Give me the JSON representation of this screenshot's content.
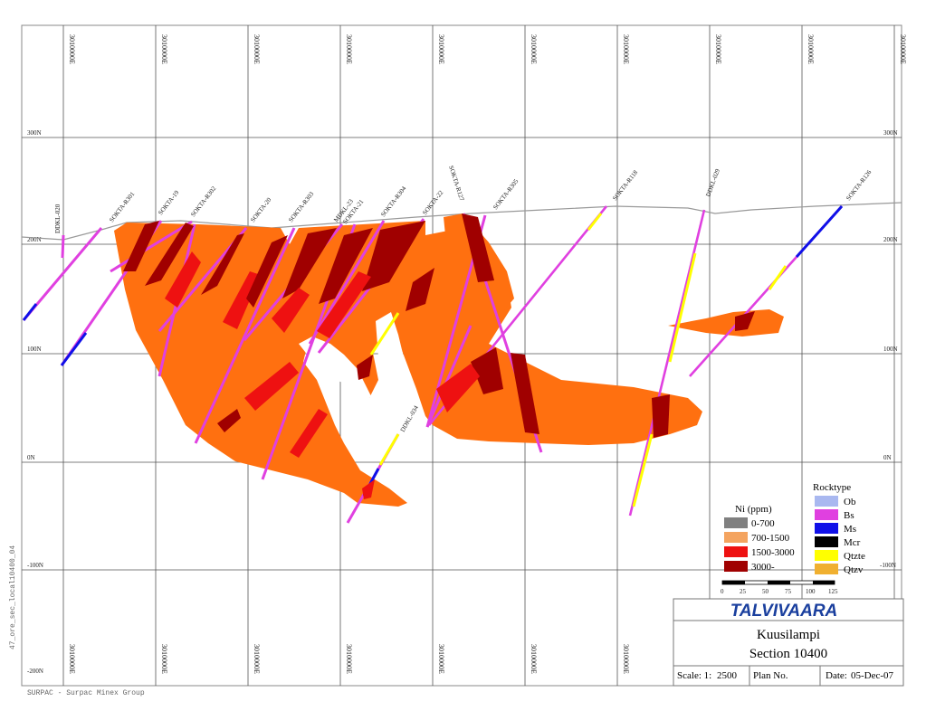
{
  "side_label": "47_ore_sec_local10400_04",
  "footer_label": "SURPAC - Surpac Minex Group",
  "easting_label": "3010000E",
  "northing_left": [
    "300N",
    "200N",
    "100N",
    "0N",
    "-100N",
    "-200N"
  ],
  "northing_right": [
    "300N",
    "200N",
    "100N",
    "0N",
    "-100N"
  ],
  "drillholes": [
    "DDKL-020",
    "SOKTA-R301",
    "SOKTA-19",
    "SOKTA-R302",
    "SOKTA-20",
    "SOKTA-R303",
    "MDKL-23",
    "SOKTA-21",
    "SOKTA-R304",
    "SOKTA-22",
    "SOKTA-R127",
    "SOKTA-R305",
    "SOKTA-R118",
    "DDKL-029",
    "SOKTA-R126",
    "DDKL-034"
  ],
  "legend_ni": {
    "title": "Ni (ppm)",
    "items": [
      {
        "label": "0-700",
        "color": "#808080"
      },
      {
        "label": "700-1500",
        "color": "#f4a460"
      },
      {
        "label": "1500-3000",
        "color": "#ee1111"
      },
      {
        "label": "3000-",
        "color": "#a00000"
      }
    ]
  },
  "legend_rock": {
    "title": "Rocktype",
    "items": [
      {
        "label": "Ob",
        "color": "#a9b8f0"
      },
      {
        "label": "Bs",
        "color": "#e040e0"
      },
      {
        "label": "Ms",
        "color": "#1010e8"
      },
      {
        "label": "Mcr",
        "color": "#000000"
      },
      {
        "label": "Qtzte",
        "color": "#ffff00"
      },
      {
        "label": "Qtzv",
        "color": "#f0b030"
      }
    ]
  },
  "scale_ticks": [
    "0",
    "25",
    "50",
    "75",
    "100",
    "125"
  ],
  "title_block": {
    "company": "TALVIVAARA",
    "location": "Kuusilampi",
    "section": "Section 10400",
    "scale_label": "Scale: 1:",
    "scale_value": "2500",
    "plan_label": "Plan No.",
    "date_label": "Date:",
    "date_value": "05-Dec-07"
  },
  "colors": {
    "orebody": "#ff7010",
    "grade_high": "#a00000",
    "grade_mid": "#ee1111",
    "company_blue": "#1a3f9e"
  }
}
